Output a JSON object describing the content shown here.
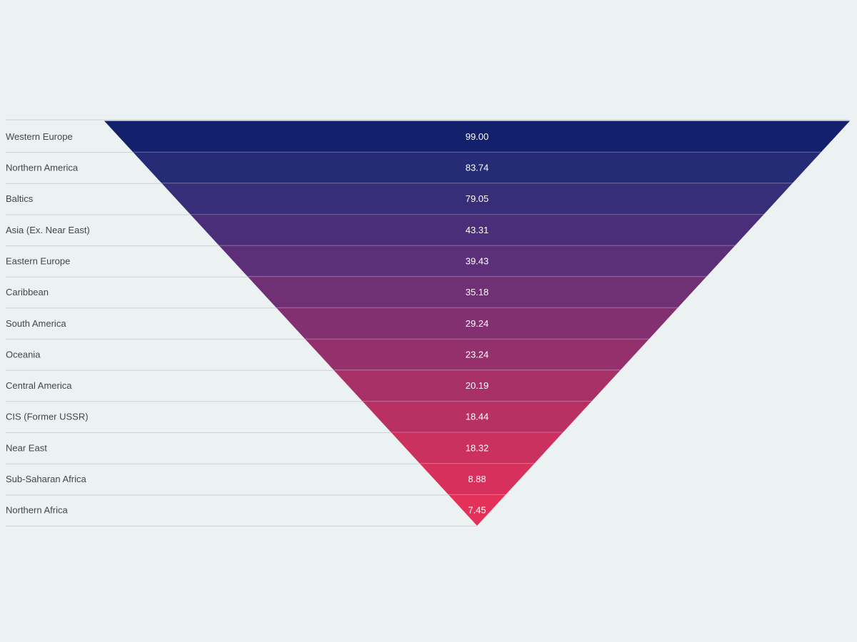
{
  "chart_data": {
    "type": "funnel",
    "shape": "inverted-pyramid",
    "title": "",
    "legend": "none",
    "grid": "row-separator-lines",
    "categories": [
      "Western Europe",
      "Northern America",
      "Baltics",
      "Asia (Ex. Near East)",
      "Eastern Europe",
      "Caribbean",
      "South America",
      "Oceania",
      "Central America",
      "CIS (Former USSR)",
      "Near East",
      "Sub-Saharan Africa",
      "Northern Africa"
    ],
    "values": [
      99.0,
      83.74,
      79.05,
      43.31,
      39.43,
      35.18,
      29.24,
      23.24,
      20.19,
      18.44,
      18.32,
      8.88,
      7.45
    ],
    "value_labels": [
      "99.00",
      "83.74",
      "79.05",
      "43.31",
      "39.43",
      "35.18",
      "29.24",
      "23.24",
      "20.19",
      "18.44",
      "18.32",
      "8.88",
      "7.45"
    ],
    "segment_colors": [
      "#13216c",
      "#252b74",
      "#382d78",
      "#4b2e7a",
      "#5d2f78",
      "#6f3074",
      "#823070",
      "#94316c",
      "#a73167",
      "#b93163",
      "#cb315f",
      "#d8305c",
      "#e43159"
    ],
    "colors": {
      "background": "#ecf1f2",
      "separator_line": "#ccd1d5",
      "inner_separator_line": "rgba(255,255,255,0.25)",
      "row_label_text": "#42474d",
      "value_text": "#ffffff"
    }
  }
}
